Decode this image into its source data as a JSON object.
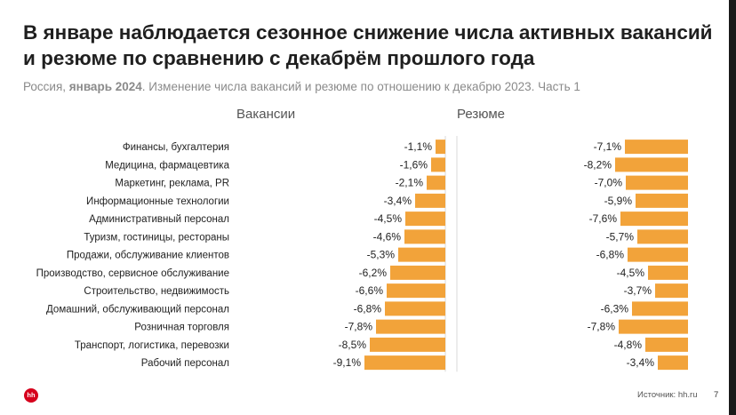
{
  "title_line1": "В январе наблюдается сезонное снижение числа активных вакансий",
  "title_line2": "и резюме по сравнению с декабрём прошлого года",
  "subtitle_prefix": "Россия, ",
  "subtitle_bold": "январь 2024",
  "subtitle_rest": ". Изменение числа вакансий и резюме по отношению к декабрю 2023. Часть 1",
  "logo_text": "hh",
  "source": "Источник: hh.ru",
  "page_number": "7",
  "colors": {
    "bar": "#f2a33a",
    "axis": "#d9d9d9",
    "text": "#222222"
  },
  "chart_data": {
    "type": "bar",
    "orientation": "horizontal",
    "categories": [
      "Финансы, бухгалтерия",
      "Медицина, фармацевтика",
      "Маркетинг, реклама, PR",
      "Информационные технологии",
      "Административный персонал",
      "Туризм, гостиницы, рестораны",
      "Продажи, обслуживание клиентов",
      "Производство, сервисное обслуживание",
      "Строительство, недвижимость",
      "Домашний, обслуживающий персонал",
      "Розничная торговля",
      "Транспорт, логистика, перевозки",
      "Рабочий персонал"
    ],
    "series": [
      {
        "name": "Вакансии",
        "values": [
          -1.1,
          -1.6,
          -2.1,
          -3.4,
          -4.5,
          -4.6,
          -5.3,
          -6.2,
          -6.6,
          -6.8,
          -7.8,
          -8.5,
          -9.1
        ],
        "labels": [
          "-1,1%",
          "-1,6%",
          "-2,1%",
          "-3,4%",
          "-4,5%",
          "-4,6%",
          "-5,3%",
          "-6,2%",
          "-6,6%",
          "-6,8%",
          "-7,8%",
          "-8,5%",
          "-9,1%"
        ]
      },
      {
        "name": "Резюме",
        "values": [
          -7.1,
          -8.2,
          -7.0,
          -5.9,
          -7.6,
          -5.7,
          -6.8,
          -4.5,
          -3.7,
          -6.3,
          -7.8,
          -4.8,
          -3.4
        ],
        "labels": [
          "-7,1%",
          "-8,2%",
          "-7,0%",
          "-5,9%",
          "-7,6%",
          "-5,7%",
          "-6,8%",
          "-4,5%",
          "-3,7%",
          "-6,3%",
          "-7,8%",
          "-4,8%",
          "-3,4%"
        ]
      }
    ],
    "xlim": [
      -10,
      0
    ]
  }
}
